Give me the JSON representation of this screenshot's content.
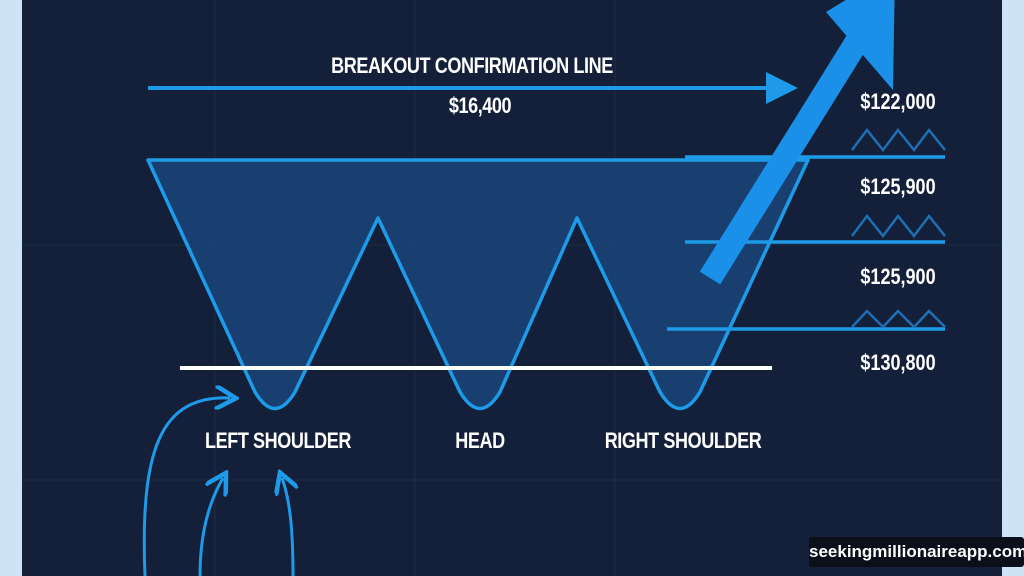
{
  "title": "BREAKOUT CONFIRMATION LINE",
  "breakout_value": "$16,400",
  "pattern_labels": {
    "left": "LEFT SHOULDER",
    "head": "HEAD",
    "right": "RIGHT SHOULDER"
  },
  "price_levels": [
    "$122,000",
    "$125,900",
    "$125,900",
    "$130,800"
  ],
  "watermark": "seekingmillionaireapp.com",
  "colors": {
    "background": "#14203a",
    "accent": "#1e9be8",
    "frame": "#cfe3f7",
    "neckline": "#ffffff"
  }
}
